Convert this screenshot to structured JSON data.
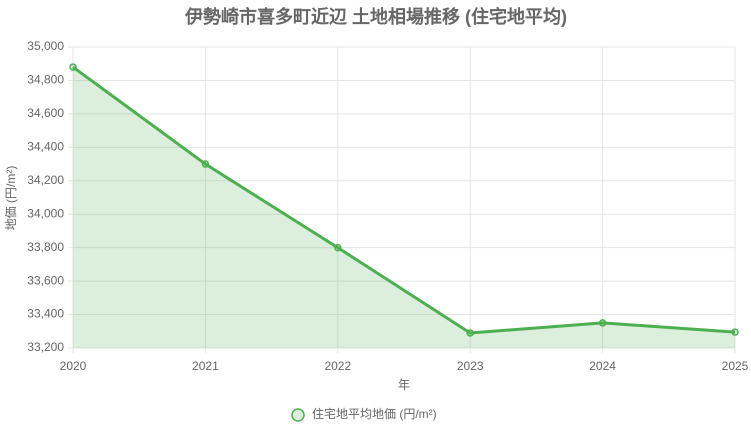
{
  "chart_data": {
    "type": "line",
    "title": "伊勢崎市喜多町近辺 土地相場推移 (住宅地平均)",
    "x_label": "年",
    "y_label": "地価 (円/m²)",
    "categories": [
      "2020",
      "2021",
      "2022",
      "2023",
      "2024",
      "2025"
    ],
    "series": [
      {
        "name": "住宅地平均地価 (円/m²)",
        "color": "#4caf50",
        "fill_color": "rgba(76,175,80,0.2)",
        "values": [
          34880,
          34300,
          33800,
          33290,
          33350,
          33295
        ]
      }
    ],
    "ylim": [
      33200,
      35000
    ],
    "yticks": [
      {
        "value": 33200,
        "label": "33,200"
      },
      {
        "value": 33400,
        "label": "33,400"
      },
      {
        "value": 33600,
        "label": "33,600"
      },
      {
        "value": 33800,
        "label": "33,800"
      },
      {
        "value": 34000,
        "label": "34,000"
      },
      {
        "value": 34200,
        "label": "34,200"
      },
      {
        "value": 34400,
        "label": "34,400"
      },
      {
        "value": 34600,
        "label": "34,600"
      },
      {
        "value": 34800,
        "label": "34,800"
      },
      {
        "value": 35000,
        "label": "35,000"
      }
    ],
    "grid": true
  }
}
